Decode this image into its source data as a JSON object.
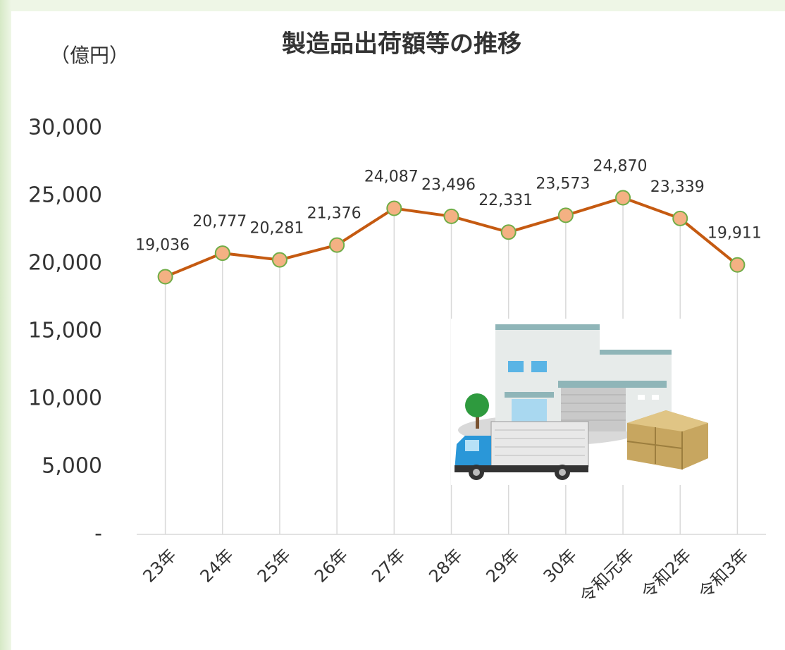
{
  "chart_data": {
    "type": "line",
    "title": "製造品出荷額等の推移",
    "y_label": "（億円）",
    "categories": [
      "23年",
      "24年",
      "25年",
      "26年",
      "27年",
      "28年",
      "29年",
      "30年",
      "令和元年",
      "令和2年",
      "令和3年"
    ],
    "series": [
      {
        "name": "製造品出荷額等",
        "color": "#c55a11",
        "marker_fill": "#f4b183",
        "marker_edge": "#70ad47",
        "values": [
          19036,
          20777,
          20281,
          21376,
          24087,
          23496,
          22331,
          23573,
          24870,
          23339,
          19911
        ],
        "value_labels": [
          "19,036",
          "20,777",
          "20,281",
          "21,376",
          "24,087",
          "23,496",
          "22,331",
          "23,573",
          "24,870",
          "23,339",
          "19,911"
        ]
      }
    ],
    "ylim": [
      0,
      30000
    ],
    "yticks": [
      {
        "value": 0,
        "label": "-"
      },
      {
        "value": 5000,
        "label": "5,000"
      },
      {
        "value": 10000,
        "label": "10,000"
      },
      {
        "value": 15000,
        "label": "15,000"
      },
      {
        "value": 20000,
        "label": "20,000"
      },
      {
        "value": 25000,
        "label": "25,000"
      },
      {
        "value": 30000,
        "label": "30,000"
      }
    ],
    "drop_lines": true
  }
}
